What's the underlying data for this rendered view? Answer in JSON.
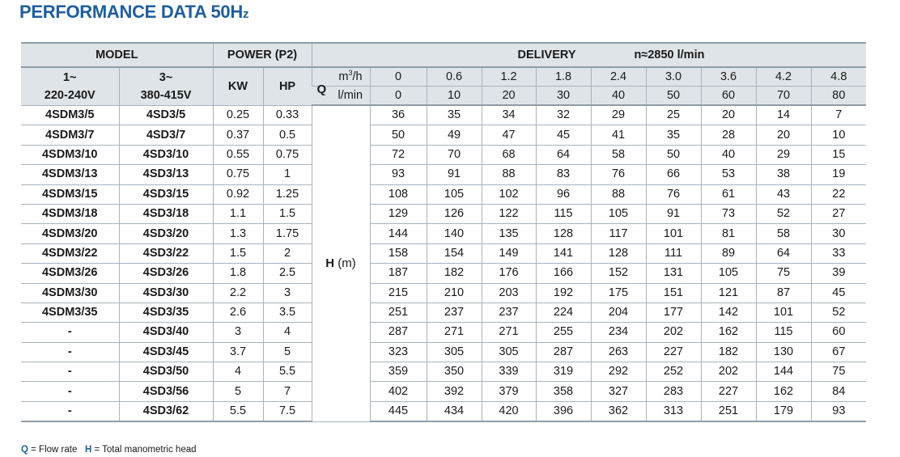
{
  "title": {
    "main": "PERFORMANCE DATA 50H",
    "suffix": "z"
  },
  "header": {
    "model": "MODEL",
    "power": "POWER (P2)",
    "delivery": "DELIVERY",
    "speed": "n≈2850 l/min",
    "single_phase_1": "1~",
    "single_phase_2": "220-240V",
    "three_phase_1": "3~",
    "three_phase_2": "380-415V",
    "kw": "KW",
    "hp": "HP",
    "q": "Q",
    "unit_m3h_base": "m",
    "unit_m3h_sup": "3",
    "unit_m3h_tail": "/h",
    "unit_lmin": "l/min",
    "m3h": [
      "0",
      "0.6",
      "1.2",
      "1.8",
      "2.4",
      "3.0",
      "3.6",
      "4.2",
      "4.8"
    ],
    "lmin": [
      "0",
      "10",
      "20",
      "30",
      "40",
      "50",
      "60",
      "70",
      "80"
    ],
    "h_symbol": "H",
    "h_unit": "(m)"
  },
  "rows": [
    {
      "m1": "4SDM3/5",
      "m3": "4SD3/5",
      "kw": "0.25",
      "hp": "0.33",
      "h": [
        "36",
        "35",
        "34",
        "32",
        "29",
        "25",
        "20",
        "14",
        "7"
      ]
    },
    {
      "m1": "4SDM3/7",
      "m3": "4SD3/7",
      "kw": "0.37",
      "hp": "0.5",
      "h": [
        "50",
        "49",
        "47",
        "45",
        "41",
        "35",
        "28",
        "20",
        "10"
      ]
    },
    {
      "m1": "4SDM3/10",
      "m3": "4SD3/10",
      "kw": "0.55",
      "hp": "0.75",
      "h": [
        "72",
        "70",
        "68",
        "64",
        "58",
        "50",
        "40",
        "29",
        "15"
      ]
    },
    {
      "m1": "4SDM3/13",
      "m3": "4SD3/13",
      "kw": "0.75",
      "hp": "1",
      "h": [
        "93",
        "91",
        "88",
        "83",
        "76",
        "66",
        "53",
        "38",
        "19"
      ]
    },
    {
      "m1": "4SDM3/15",
      "m3": "4SD3/15",
      "kw": "0.92",
      "hp": "1.25",
      "h": [
        "108",
        "105",
        "102",
        "96",
        "88",
        "76",
        "61",
        "43",
        "22"
      ]
    },
    {
      "m1": "4SDM3/18",
      "m3": "4SD3/18",
      "kw": "1.1",
      "hp": "1.5",
      "h": [
        "129",
        "126",
        "122",
        "115",
        "105",
        "91",
        "73",
        "52",
        "27"
      ]
    },
    {
      "m1": "4SDM3/20",
      "m3": "4SD3/20",
      "kw": "1.3",
      "hp": "1.75",
      "h": [
        "144",
        "140",
        "135",
        "128",
        "117",
        "101",
        "81",
        "58",
        "30"
      ]
    },
    {
      "m1": "4SDM3/22",
      "m3": "4SD3/22",
      "kw": "1.5",
      "hp": "2",
      "h": [
        "158",
        "154",
        "149",
        "141",
        "128",
        "111",
        "89",
        "64",
        "33"
      ]
    },
    {
      "m1": "4SDM3/26",
      "m3": "4SD3/26",
      "kw": "1.8",
      "hp": "2.5",
      "h": [
        "187",
        "182",
        "176",
        "166",
        "152",
        "131",
        "105",
        "75",
        "39"
      ]
    },
    {
      "m1": "4SDM3/30",
      "m3": "4SD3/30",
      "kw": "2.2",
      "hp": "3",
      "h": [
        "215",
        "210",
        "203",
        "192",
        "175",
        "151",
        "121",
        "87",
        "45"
      ]
    },
    {
      "m1": "4SDM3/35",
      "m3": "4SD3/35",
      "kw": "2.6",
      "hp": "3.5",
      "h": [
        "251",
        "237",
        "237",
        "224",
        "204",
        "177",
        "142",
        "101",
        "52"
      ]
    },
    {
      "m1": "-",
      "m3": "4SD3/40",
      "kw": "3",
      "hp": "4",
      "h": [
        "287",
        "271",
        "271",
        "255",
        "234",
        "202",
        "162",
        "115",
        "60"
      ]
    },
    {
      "m1": "-",
      "m3": "4SD3/45",
      "kw": "3.7",
      "hp": "5",
      "h": [
        "323",
        "305",
        "305",
        "287",
        "263",
        "227",
        "182",
        "130",
        "67"
      ]
    },
    {
      "m1": "-",
      "m3": "4SD3/50",
      "kw": "4",
      "hp": "5.5",
      "h": [
        "359",
        "350",
        "339",
        "319",
        "292",
        "252",
        "202",
        "144",
        "75"
      ]
    },
    {
      "m1": "-",
      "m3": "4SD3/56",
      "kw": "5",
      "hp": "7",
      "h": [
        "402",
        "392",
        "379",
        "358",
        "327",
        "283",
        "227",
        "162",
        "84"
      ]
    },
    {
      "m1": "-",
      "m3": "4SD3/62",
      "kw": "5.5",
      "hp": "7.5",
      "h": [
        "445",
        "434",
        "420",
        "396",
        "362",
        "313",
        "251",
        "179",
        "93"
      ]
    }
  ],
  "footnote": {
    "q_key": "Q",
    "q_text": " = Flow rate",
    "h_key": "H",
    "h_text": " = Total manometric head"
  },
  "colors": {
    "title": "#1f5e9c",
    "header_bg": "#dfe4e8",
    "rule": "#a8b3bd"
  }
}
